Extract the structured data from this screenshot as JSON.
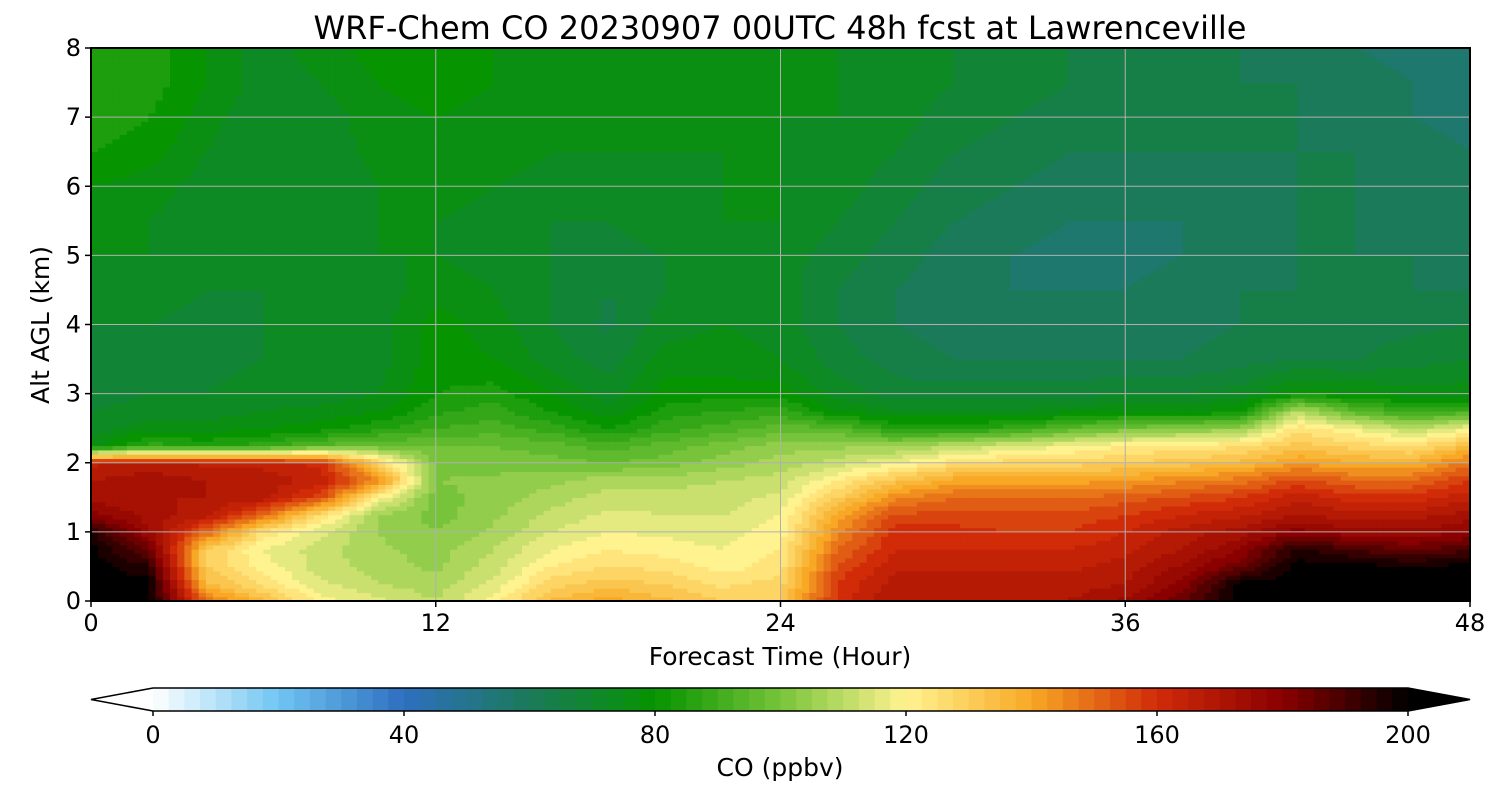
{
  "chart_data": {
    "type": "heatmap",
    "title": "WRF-Chem CO  20230907 00UTC 48h fcst at Lawrenceville",
    "xlabel": "Forecast Time (Hour)",
    "ylabel": "Alt AGL (km)",
    "x_ticks": [
      "0",
      "12",
      "24",
      "36",
      "48"
    ],
    "y_ticks": [
      "0",
      "1",
      "2",
      "3",
      "4",
      "5",
      "6",
      "7",
      "8"
    ],
    "xlim": [
      0,
      48
    ],
    "ylim": [
      0,
      8
    ],
    "grid": true,
    "colorbar": {
      "label": "CO  (ppbv)",
      "ticks": [
        "0",
        "40",
        "80",
        "120",
        "160",
        "200"
      ],
      "range": [
        0,
        200
      ],
      "extend": "both",
      "colors": [
        "#ffffff",
        "#6fc5f2",
        "#2e6fc0",
        "#1a7a5a",
        "#069400",
        "#77c43a",
        "#fff390",
        "#f8a825",
        "#d12b08",
        "#8a0000",
        "#000000"
      ]
    },
    "x": [
      0,
      2,
      4,
      6,
      8,
      10,
      12,
      14,
      16,
      18,
      20,
      22,
      24,
      26,
      28,
      30,
      32,
      34,
      36,
      38,
      40,
      42,
      44,
      46,
      48
    ],
    "y": [
      0,
      0.25,
      0.5,
      0.75,
      1,
      1.25,
      1.5,
      1.75,
      2,
      2.25,
      2.5,
      2.75,
      3,
      3.5,
      4,
      4.5,
      5,
      5.5,
      6,
      6.5,
      7,
      7.5,
      8
    ],
    "z": [
      [
        200,
        200,
        150,
        135,
        120,
        115,
        110,
        120,
        135,
        140,
        135,
        130,
        130,
        160,
        170,
        170,
        170,
        170,
        175,
        185,
        200,
        200,
        200,
        200,
        200
      ],
      [
        200,
        200,
        135,
        125,
        115,
        110,
        108,
        115,
        128,
        132,
        130,
        125,
        128,
        158,
        168,
        168,
        168,
        168,
        170,
        180,
        200,
        200,
        200,
        200,
        200
      ],
      [
        200,
        195,
        130,
        120,
        112,
        108,
        105,
        112,
        122,
        126,
        125,
        120,
        124,
        155,
        165,
        165,
        165,
        165,
        168,
        175,
        185,
        200,
        200,
        198,
        200
      ],
      [
        200,
        185,
        130,
        118,
        112,
        107,
        104,
        110,
        118,
        122,
        120,
        118,
        122,
        150,
        162,
        162,
        162,
        162,
        165,
        170,
        178,
        195,
        190,
        185,
        190
      ],
      [
        195,
        175,
        150,
        125,
        115,
        106,
        102,
        107,
        114,
        118,
        117,
        116,
        120,
        145,
        160,
        160,
        158,
        158,
        162,
        168,
        172,
        180,
        175,
        175,
        178
      ],
      [
        180,
        172,
        168,
        150,
        125,
        106,
        100,
        105,
        111,
        115,
        114,
        114,
        118,
        140,
        155,
        155,
        155,
        155,
        158,
        162,
        165,
        170,
        168,
        168,
        172
      ],
      [
        172,
        170,
        170,
        168,
        155,
        120,
        100,
        104,
        108,
        112,
        112,
        112,
        115,
        130,
        145,
        150,
        150,
        150,
        152,
        155,
        158,
        165,
        160,
        160,
        165
      ],
      [
        170,
        172,
        170,
        168,
        165,
        145,
        102,
        103,
        105,
        108,
        108,
        110,
        112,
        122,
        132,
        140,
        140,
        140,
        142,
        145,
        148,
        155,
        150,
        150,
        158
      ],
      [
        165,
        168,
        165,
        165,
        160,
        130,
        100,
        100,
        100,
        98,
        100,
        104,
        108,
        112,
        118,
        125,
        128,
        128,
        130,
        132,
        135,
        142,
        138,
        138,
        148
      ],
      [
        75,
        88,
        85,
        88,
        95,
        98,
        98,
        98,
        96,
        92,
        96,
        100,
        104,
        105,
        105,
        110,
        114,
        118,
        122,
        124,
        125,
        132,
        128,
        125,
        135
      ],
      [
        72,
        76,
        76,
        78,
        80,
        85,
        90,
        92,
        88,
        82,
        88,
        92,
        96,
        95,
        85,
        85,
        88,
        95,
        100,
        102,
        105,
        125,
        118,
        110,
        118
      ],
      [
        70,
        72,
        72,
        74,
        75,
        78,
        85,
        88,
        82,
        75,
        84,
        86,
        88,
        78,
        74,
        74,
        74,
        76,
        78,
        78,
        80,
        110,
        95,
        88,
        92
      ],
      [
        68,
        70,
        70,
        72,
        72,
        74,
        82,
        84,
        78,
        72,
        80,
        80,
        80,
        72,
        68,
        68,
        68,
        68,
        70,
        70,
        72,
        80,
        78,
        76,
        76
      ],
      [
        66,
        68,
        68,
        70,
        70,
        72,
        80,
        78,
        72,
        68,
        76,
        76,
        74,
        68,
        64,
        62,
        62,
        62,
        62,
        62,
        64,
        66,
        66,
        68,
        70
      ],
      [
        70,
        70,
        68,
        70,
        70,
        72,
        80,
        76,
        70,
        65,
        72,
        74,
        72,
        66,
        62,
        60,
        60,
        60,
        60,
        60,
        62,
        64,
        64,
        65,
        66
      ],
      [
        72,
        72,
        70,
        70,
        70,
        72,
        76,
        74,
        70,
        66,
        70,
        74,
        72,
        66,
        62,
        60,
        58,
        58,
        58,
        60,
        62,
        62,
        62,
        62,
        62
      ],
      [
        74,
        74,
        72,
        72,
        72,
        74,
        74,
        72,
        70,
        68,
        70,
        74,
        72,
        68,
        64,
        60,
        58,
        56,
        56,
        58,
        60,
        62,
        62,
        62,
        60
      ],
      [
        76,
        74,
        72,
        70,
        72,
        74,
        74,
        72,
        70,
        70,
        72,
        74,
        74,
        70,
        66,
        62,
        60,
        58,
        58,
        58,
        60,
        62,
        62,
        60,
        60
      ],
      [
        78,
        76,
        72,
        70,
        72,
        74,
        76,
        74,
        72,
        72,
        72,
        74,
        74,
        72,
        68,
        64,
        62,
        60,
        60,
        60,
        60,
        62,
        62,
        60,
        60
      ],
      [
        82,
        80,
        74,
        70,
        72,
        75,
        76,
        76,
        74,
        74,
        74,
        74,
        74,
        72,
        70,
        66,
        64,
        62,
        62,
        62,
        62,
        62,
        62,
        60,
        58
      ],
      [
        85,
        82,
        76,
        70,
        72,
        76,
        78,
        76,
        76,
        76,
        76,
        76,
        74,
        74,
        72,
        68,
        66,
        64,
        62,
        62,
        62,
        62,
        60,
        58,
        56
      ],
      [
        86,
        84,
        78,
        72,
        74,
        78,
        80,
        78,
        76,
        76,
        76,
        76,
        76,
        74,
        72,
        70,
        68,
        66,
        64,
        62,
        62,
        62,
        60,
        58,
        56
      ],
      [
        86,
        84,
        78,
        72,
        76,
        80,
        82,
        78,
        76,
        76,
        76,
        76,
        76,
        74,
        72,
        70,
        68,
        66,
        64,
        62,
        62,
        60,
        58,
        56,
        54
      ]
    ]
  }
}
